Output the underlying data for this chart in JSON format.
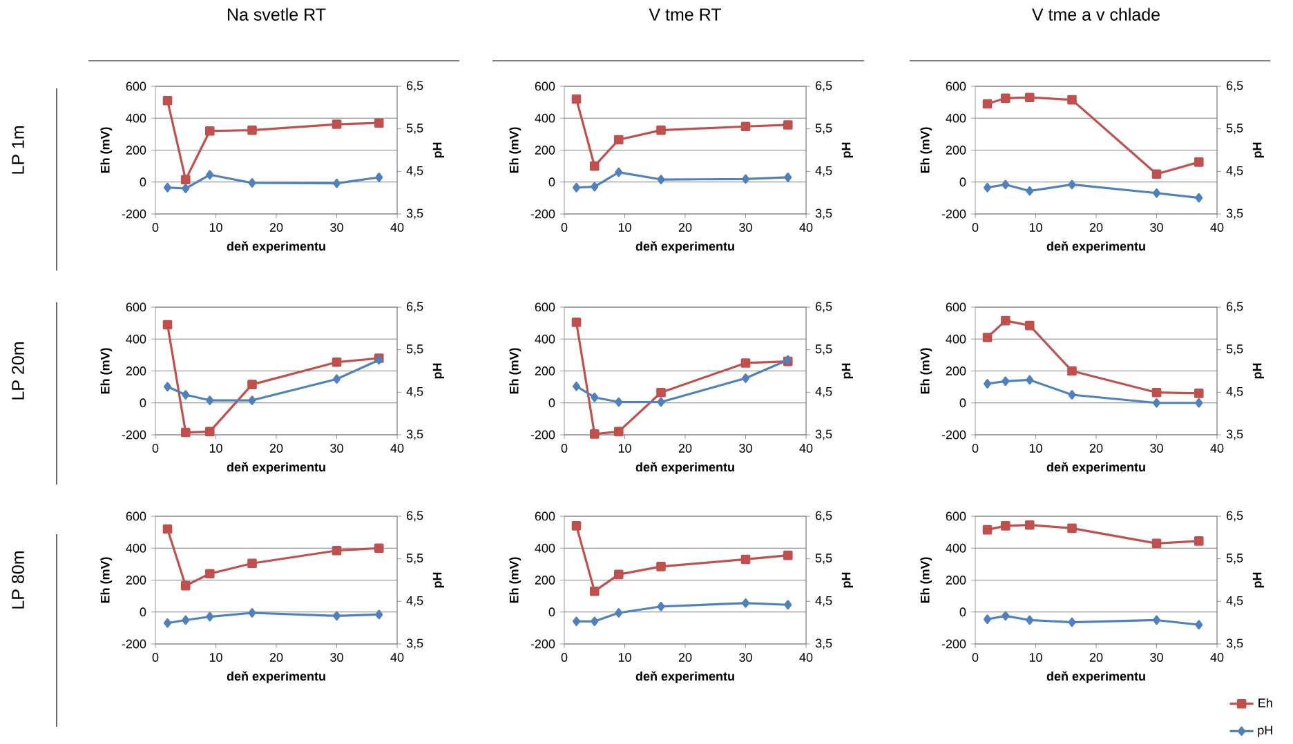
{
  "chart_data": [
    {
      "type": "line",
      "title": "Na svetle RT",
      "annotations": [
        "LP 1m"
      ],
      "xlabel": "deň experimentu",
      "ylabel": "Eh (mV)",
      "y2label": "pH",
      "x": [
        2,
        5,
        9,
        16,
        30,
        37
      ],
      "xlim": [
        0,
        40
      ],
      "xticks": [
        0,
        10,
        20,
        30,
        40
      ],
      "ylim": [
        -200,
        600
      ],
      "yticks": [
        -200,
        0,
        200,
        400,
        600
      ],
      "y2lim": [
        3.5,
        6.5
      ],
      "y2ticks": [
        {
          "value": 3.5,
          "label": "3,5"
        },
        {
          "value": 4.5,
          "label": "4,5"
        },
        {
          "value": 5.5,
          "label": "5,5"
        },
        {
          "value": 6.5,
          "label": "6,5"
        }
      ],
      "grid": "y",
      "series": [
        {
          "color": "#c0504d",
          "marker": "square",
          "values": [
            510,
            15,
            320,
            325,
            362,
            370
          ]
        },
        {
          "color": "#4f81bd",
          "marker": "diamond",
          "axis": "y2",
          "values": [
            4.12,
            4.1,
            4.42,
            4.23,
            4.22,
            4.36
          ]
        }
      ]
    },
    {
      "type": "line",
      "title": "V tme RT",
      "xlabel": "deň experimentu",
      "ylabel": "Eh (mV)",
      "y2label": "pH",
      "x": [
        2,
        5,
        9,
        16,
        30,
        37
      ],
      "xlim": [
        0,
        40
      ],
      "xticks": [
        0,
        10,
        20,
        30,
        40
      ],
      "ylim": [
        -200,
        600
      ],
      "yticks": [
        -200,
        0,
        200,
        400,
        600
      ],
      "y2lim": [
        3.5,
        6.5
      ],
      "y2ticks": [
        {
          "value": 3.5,
          "label": "3,5"
        },
        {
          "value": 4.5,
          "label": "4,5"
        },
        {
          "value": 5.5,
          "label": "5,5"
        },
        {
          "value": 6.5,
          "label": "6,5"
        }
      ],
      "grid": "y",
      "series": [
        {
          "color": "#c0504d",
          "marker": "square",
          "values": [
            520,
            100,
            265,
            325,
            348,
            358
          ]
        },
        {
          "color": "#4f81bd",
          "marker": "diamond",
          "axis": "y2",
          "values": [
            4.12,
            4.14,
            4.48,
            4.31,
            4.32,
            4.36
          ]
        }
      ]
    },
    {
      "type": "line",
      "title": "V tme a v chlade",
      "xlabel": "deň experimentu",
      "ylabel": "Eh (mV)",
      "y2label": "pH",
      "x": [
        2,
        5,
        9,
        16,
        30,
        37
      ],
      "xlim": [
        0,
        40
      ],
      "xticks": [
        0,
        10,
        20,
        30,
        40
      ],
      "ylim": [
        -200,
        600
      ],
      "yticks": [
        -200,
        0,
        200,
        400,
        600
      ],
      "y2lim": [
        3.5,
        6.5
      ],
      "y2ticks": [
        {
          "value": 3.5,
          "label": "3,5"
        },
        {
          "value": 4.5,
          "label": "4,5"
        },
        {
          "value": 5.5,
          "label": "5,5"
        },
        {
          "value": 6.5,
          "label": "6,5"
        }
      ],
      "grid": "y",
      "series": [
        {
          "color": "#c0504d",
          "marker": "square",
          "values": [
            490,
            525,
            530,
            515,
            50,
            125
          ]
        },
        {
          "color": "#4f81bd",
          "marker": "diamond",
          "axis": "y2",
          "values": [
            4.12,
            4.19,
            4.04,
            4.19,
            3.99,
            3.88
          ]
        }
      ]
    },
    {
      "type": "line",
      "annotations": [
        "LP 20m"
      ],
      "xlabel": "deň experimentu",
      "ylabel": "Eh (mV)",
      "y2label": "pH",
      "x": [
        2,
        5,
        9,
        16,
        30,
        37
      ],
      "xlim": [
        0,
        40
      ],
      "xticks": [
        0,
        10,
        20,
        30,
        40
      ],
      "ylim": [
        -200,
        600
      ],
      "yticks": [
        -200,
        0,
        200,
        400,
        600
      ],
      "y2lim": [
        3.5,
        6.5
      ],
      "y2ticks": [
        {
          "value": 3.5,
          "label": "3,5"
        },
        {
          "value": 4.5,
          "label": "4,5"
        },
        {
          "value": 5.5,
          "label": "5,5"
        },
        {
          "value": 6.5,
          "label": "6,5"
        }
      ],
      "grid": "y",
      "series": [
        {
          "color": "#c0504d",
          "marker": "square",
          "values": [
            490,
            -185,
            -180,
            115,
            255,
            280
          ]
        },
        {
          "color": "#4f81bd",
          "marker": "diamond",
          "axis": "y2",
          "values": [
            4.63,
            4.44,
            4.31,
            4.31,
            4.81,
            5.26
          ]
        }
      ]
    },
    {
      "type": "line",
      "xlabel": "deň experimentu",
      "ylabel": "Eh (mV)",
      "y2label": "pH",
      "x": [
        2,
        5,
        9,
        16,
        30,
        37
      ],
      "xlim": [
        0,
        40
      ],
      "xticks": [
        0,
        10,
        20,
        30,
        40
      ],
      "ylim": [
        -200,
        600
      ],
      "yticks": [
        -200,
        0,
        200,
        400,
        600
      ],
      "y2lim": [
        3.5,
        6.5
      ],
      "y2ticks": [
        {
          "value": 3.5,
          "label": "3,5"
        },
        {
          "value": 4.5,
          "label": "4,5"
        },
        {
          "value": 5.5,
          "label": "5,5"
        },
        {
          "value": 6.5,
          "label": "6,5"
        }
      ],
      "grid": "y",
      "series": [
        {
          "color": "#c0504d",
          "marker": "square",
          "values": [
            505,
            -195,
            -180,
            65,
            250,
            260
          ]
        },
        {
          "color": "#4f81bd",
          "marker": "diamond",
          "axis": "y2",
          "values": [
            4.64,
            4.38,
            4.27,
            4.27,
            4.83,
            5.26
          ]
        }
      ]
    },
    {
      "type": "line",
      "xlabel": "deň experimentu",
      "ylabel": "Eh (mV)",
      "y2label": "pH",
      "x": [
        2,
        5,
        9,
        16,
        30,
        37
      ],
      "xlim": [
        0,
        40
      ],
      "xticks": [
        0,
        10,
        20,
        30,
        40
      ],
      "ylim": [
        -200,
        600
      ],
      "yticks": [
        -200,
        0,
        200,
        400,
        600
      ],
      "y2lim": [
        3.5,
        6.5
      ],
      "y2ticks": [
        {
          "value": 3.5,
          "label": "3,5"
        },
        {
          "value": 4.5,
          "label": "4,5"
        },
        {
          "value": 5.5,
          "label": "5,5"
        },
        {
          "value": 6.5,
          "label": "6,5"
        }
      ],
      "grid": "y",
      "series": [
        {
          "color": "#c0504d",
          "marker": "square",
          "values": [
            410,
            515,
            485,
            200,
            65,
            60
          ]
        },
        {
          "color": "#4f81bd",
          "marker": "diamond",
          "axis": "y2",
          "values": [
            4.7,
            4.76,
            4.79,
            4.44,
            4.25,
            4.25
          ]
        }
      ]
    },
    {
      "type": "line",
      "annotations": [
        "LP 80m"
      ],
      "xlabel": "deň experimentu",
      "ylabel": "Eh (mV)",
      "y2label": "pH",
      "x": [
        2,
        5,
        9,
        16,
        30,
        37
      ],
      "xlim": [
        0,
        40
      ],
      "xticks": [
        0,
        10,
        20,
        30,
        40
      ],
      "ylim": [
        -200,
        600
      ],
      "yticks": [
        -200,
        0,
        200,
        400,
        600
      ],
      "y2lim": [
        3.5,
        6.5
      ],
      "y2ticks": [
        {
          "value": 3.5,
          "label": "3,5"
        },
        {
          "value": 4.5,
          "label": "4,5"
        },
        {
          "value": 5.5,
          "label": "5,5"
        },
        {
          "value": 6.5,
          "label": "6,5"
        }
      ],
      "grid": "y",
      "series": [
        {
          "color": "#c0504d",
          "marker": "square",
          "values": [
            520,
            165,
            240,
            305,
            385,
            400
          ]
        },
        {
          "color": "#4f81bd",
          "marker": "diamond",
          "axis": "y2",
          "values": [
            3.99,
            4.06,
            4.14,
            4.23,
            4.16,
            4.19
          ]
        }
      ]
    },
    {
      "type": "line",
      "xlabel": "deň experimentu",
      "ylabel": "Eh (mV)",
      "y2label": "pH",
      "x": [
        2,
        5,
        9,
        16,
        30,
        37
      ],
      "xlim": [
        0,
        40
      ],
      "xticks": [
        0,
        10,
        20,
        30,
        40
      ],
      "ylim": [
        -200,
        600
      ],
      "yticks": [
        -200,
        0,
        200,
        400,
        600
      ],
      "y2lim": [
        3.5,
        6.5
      ],
      "y2ticks": [
        {
          "value": 3.5,
          "label": "3,5"
        },
        {
          "value": 4.5,
          "label": "4,5"
        },
        {
          "value": 5.5,
          "label": "5,5"
        },
        {
          "value": 6.5,
          "label": "6,5"
        }
      ],
      "grid": "y",
      "series": [
        {
          "color": "#c0504d",
          "marker": "square",
          "values": [
            540,
            130,
            235,
            285,
            330,
            355
          ]
        },
        {
          "color": "#4f81bd",
          "marker": "diamond",
          "axis": "y2",
          "values": [
            4.03,
            4.03,
            4.23,
            4.38,
            4.46,
            4.42
          ]
        }
      ]
    },
    {
      "type": "line",
      "xlabel": "deň experimentu",
      "ylabel": "Eh (mV)",
      "y2label": "pH",
      "x": [
        2,
        5,
        9,
        16,
        30,
        37
      ],
      "xlim": [
        0,
        40
      ],
      "xticks": [
        0,
        10,
        20,
        30,
        40
      ],
      "ylim": [
        -200,
        600
      ],
      "yticks": [
        -200,
        0,
        200,
        400,
        600
      ],
      "y2lim": [
        3.5,
        6.5
      ],
      "y2ticks": [
        {
          "value": 3.5,
          "label": "3,5"
        },
        {
          "value": 4.5,
          "label": "4,5"
        },
        {
          "value": 5.5,
          "label": "5,5"
        },
        {
          "value": 6.5,
          "label": "6,5"
        }
      ],
      "grid": "y",
      "legend": "bottom right",
      "series": [
        {
          "name": "Eh",
          "color": "#c0504d",
          "marker": "square",
          "values": [
            515,
            540,
            545,
            525,
            430,
            445
          ]
        },
        {
          "name": "pH",
          "color": "#4f81bd",
          "marker": "diamond",
          "axis": "y2",
          "values": [
            4.08,
            4.16,
            4.06,
            4.01,
            4.06,
            3.95
          ]
        }
      ]
    }
  ]
}
